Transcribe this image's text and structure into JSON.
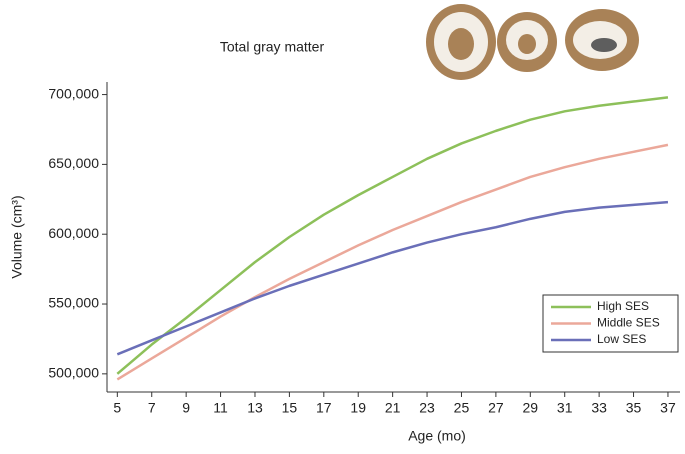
{
  "chart_data": {
    "type": "line",
    "title": "Total gray matter",
    "x_label": "Age (mo)",
    "y_label": "Volume (cm³)",
    "x": [
      5,
      7,
      9,
      11,
      13,
      15,
      17,
      19,
      21,
      23,
      25,
      27,
      29,
      31,
      33,
      35,
      37
    ],
    "series": [
      {
        "name": "High SES",
        "color": "#8dc05a",
        "values": [
          500000,
          521000,
          540000,
          560000,
          580000,
          598000,
          614000,
          628000,
          641000,
          654000,
          665000,
          674000,
          682000,
          688000,
          692000,
          695000,
          698000
        ]
      },
      {
        "name": "Middle SES",
        "color": "#eba89a",
        "values": [
          496000,
          511000,
          526000,
          541000,
          555000,
          568000,
          580000,
          592000,
          603000,
          613000,
          623000,
          632000,
          641000,
          648000,
          654000,
          659000,
          664000
        ]
      },
      {
        "name": "Low SES",
        "color": "#6a6fb8",
        "values": [
          514000,
          524000,
          534000,
          544000,
          554000,
          563000,
          571000,
          579000,
          587000,
          594000,
          600000,
          605000,
          611000,
          616000,
          619000,
          621000,
          623000
        ]
      }
    ],
    "xlim": [
      4.4,
      37.7
    ],
    "ylim": [
      487000,
      709000
    ],
    "xticks": [
      5,
      7,
      9,
      11,
      13,
      15,
      17,
      19,
      21,
      23,
      25,
      27,
      29,
      31,
      33,
      35,
      37
    ],
    "yticks": [
      {
        "value": 500000,
        "label": "500,000"
      },
      {
        "value": 550000,
        "label": "550,000"
      },
      {
        "value": 600000,
        "label": "600,000"
      },
      {
        "value": 650000,
        "label": "650,000"
      },
      {
        "value": 700000,
        "label": "700,000"
      }
    ],
    "legend": "lower right"
  }
}
